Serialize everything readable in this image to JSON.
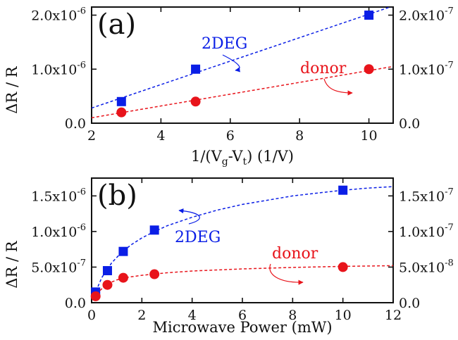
{
  "chart_data": [
    {
      "type": "scatter",
      "panel_label": "(a)",
      "xlabel": "1/(V_g-V_t) (1/V)",
      "ylabel": "ΔR / R",
      "xlim": [
        2,
        10.7
      ],
      "xticks": [
        2,
        4,
        6,
        8,
        10
      ],
      "xtick_labels": [
        "2",
        "4",
        "6",
        "8",
        "10"
      ],
      "left_axis": {
        "ylim": [
          0,
          2.15e-06
        ],
        "ticks": [
          0,
          1e-06,
          2e-06
        ],
        "tick_labels": [
          [
            "0.0",
            ""
          ],
          [
            "1.0x10",
            "-6"
          ],
          [
            "2.0x10",
            "-6"
          ]
        ]
      },
      "right_axis": {
        "ylim": [
          0,
          2.15e-07
        ],
        "ticks": [
          0,
          1e-07,
          2e-07
        ],
        "tick_labels": [
          [
            "0.0",
            ""
          ],
          [
            "1.0x10",
            "-7"
          ],
          [
            "2.0x10",
            "-7"
          ]
        ]
      },
      "series": [
        {
          "name": "2DEG",
          "axis": "left",
          "marker": "square",
          "color": "#0a1ee6",
          "x": [
            2.86,
            5.0,
            10.0
          ],
          "y": [
            4e-07,
            1e-06,
            2e-06
          ],
          "fit": {
            "kind": "linear",
            "x": [
              2.0,
              10.7
            ],
            "y": [
              2.8e-07,
              2.17e-06
            ]
          }
        },
        {
          "name": "donor",
          "axis": "right",
          "marker": "circle",
          "color": "#e8141b",
          "x": [
            2.86,
            5.0,
            10.0
          ],
          "y": [
            2e-08,
            4e-08,
            1e-07
          ],
          "fit": {
            "kind": "linear",
            "x": [
              2.0,
              10.7
            ],
            "y": [
              1e-08,
              1.05e-07
            ]
          }
        }
      ]
    },
    {
      "type": "scatter",
      "panel_label": "(b)",
      "xlabel": "Microwave Power (mW)",
      "ylabel": "ΔR / R",
      "xlim": [
        0,
        12
      ],
      "xticks": [
        0,
        2,
        4,
        6,
        8,
        10,
        12
      ],
      "xtick_labels": [
        "0",
        "2",
        "4",
        "6",
        "8",
        "10",
        "12"
      ],
      "left_axis": {
        "ylim": [
          0,
          1.75e-06
        ],
        "ticks": [
          0,
          5e-07,
          1e-06,
          1.5e-06
        ],
        "tick_labels": [
          [
            "0.0",
            ""
          ],
          [
            "5.0x10",
            "-7"
          ],
          [
            "1.0x10",
            "-6"
          ],
          [
            "1.5x10",
            "-6"
          ]
        ]
      },
      "right_axis": {
        "ylim": [
          0,
          1.75e-07
        ],
        "ticks": [
          0,
          5e-08,
          1e-07,
          1.5e-07
        ],
        "tick_labels": [
          [
            "0.0",
            ""
          ],
          [
            "5.0x10",
            "-8"
          ],
          [
            "1.0x10",
            "-7"
          ],
          [
            "1.5x10",
            "-7"
          ]
        ]
      },
      "series": [
        {
          "name": "2DEG",
          "axis": "left",
          "marker": "square",
          "color": "#0a1ee6",
          "x": [
            0.16,
            0.63,
            1.26,
            2.5,
            10.0
          ],
          "y": [
            1.5e-07,
            4.5e-07,
            7.2e-07,
            1.02e-06,
            1.58e-06
          ],
          "fit": {
            "kind": "saturation",
            "x": [
              0.1,
              0.4,
              0.8,
              1.2,
              1.6,
              2.0,
              2.5,
              3.0,
              4.0,
              5.0,
              6.0,
              7.0,
              8.0,
              9.0,
              10.0,
              11.0,
              12.0
            ],
            "y": [
              1e-07,
              3.5e-07,
              5.6e-07,
              7.1e-07,
              8.2e-07,
              9.1e-07,
              1e-06,
              1.08e-06,
              1.2e-06,
              1.3e-06,
              1.38e-06,
              1.44e-06,
              1.5e-06,
              1.54e-06,
              1.58e-06,
              1.61e-06,
              1.63e-06
            ]
          }
        },
        {
          "name": "donor",
          "axis": "right",
          "marker": "circle",
          "color": "#e8141b",
          "x": [
            0.16,
            0.63,
            1.26,
            2.5,
            10.0
          ],
          "y": [
            9e-09,
            2.5e-08,
            3.5e-08,
            4e-08,
            5e-08
          ],
          "fit": {
            "kind": "saturation",
            "x": [
              0.1,
              0.3,
              0.6,
              1.0,
              1.5,
              2.0,
              3.0,
              4.0,
              6.0,
              8.0,
              10.0,
              12.0
            ],
            "y": [
              6e-09,
              1.6e-08,
              2.6e-08,
              3.2e-08,
              3.6e-08,
              3.85e-08,
              4.2e-08,
              4.45e-08,
              4.75e-08,
              4.95e-08,
              5.1e-08,
              5.2e-08
            ]
          }
        }
      ]
    }
  ]
}
